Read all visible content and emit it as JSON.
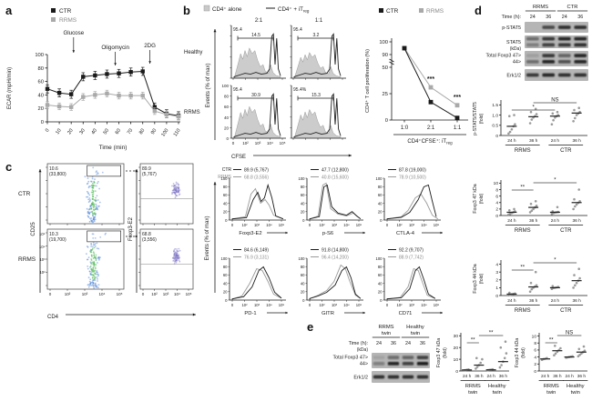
{
  "colors": {
    "ctr": "#1a1a1a",
    "rrms": "#a9a9a9",
    "hist_fill": "#c9c9c9",
    "hist_edge": "#9a9a9a",
    "blot_bg": "#b5b5b5",
    "band": "#181818",
    "dot_blue": "#5b8dd9",
    "dot_green": "#45b54d",
    "dot_purple": "#7d74c4",
    "axis": "#333333",
    "sig": "#444444",
    "pt": "#8f8f8f"
  },
  "panel_a": {
    "label": "a",
    "legend": [
      "CTR",
      "RRMS"
    ],
    "ylabel": "ECAR (mpH/min)",
    "xlabel": "Time (min)",
    "yticks": [
      0,
      20,
      40,
      60,
      80,
      100
    ],
    "chart_data": {
      "type": "line",
      "x": [
        0,
        10,
        20,
        30,
        40,
        50,
        60,
        70,
        80,
        90,
        100,
        110
      ],
      "series": [
        {
          "name": "CTR",
          "values": [
            49,
            43,
            41,
            67,
            69,
            71,
            72,
            74,
            75,
            22,
            12,
            9
          ],
          "err": 6
        },
        {
          "name": "RRMS",
          "values": [
            25,
            23,
            22,
            37,
            40,
            42,
            39,
            39,
            39,
            16,
            11,
            8
          ],
          "err": 5
        }
      ],
      "ylim": [
        0,
        100
      ]
    },
    "annotations": [
      {
        "text": "Glucose",
        "x": 22
      },
      {
        "text": "Oligomycin",
        "x": 57
      },
      {
        "text": "2DG",
        "x": 86
      }
    ]
  },
  "panel_b": {
    "label": "b",
    "legend": {
      "alone": "CD4⁺ alone",
      "treg_main": "CD4⁺ + iT",
      "treg_sub": "reg"
    },
    "col_headers": [
      "2:1",
      "1:1"
    ],
    "row_labels": [
      "Healthy",
      "RRMS"
    ],
    "plots": [
      {
        "corner": "95.4",
        "gate": "14.5"
      },
      {
        "corner": "95.4",
        "gate": "3.2"
      },
      {
        "corner": "95.4",
        "gate": "30.9"
      },
      {
        "corner": "95.4%",
        "gate": "15.3"
      }
    ],
    "yticks": [
      "100",
      "80",
      "60",
      "40",
      "20",
      "0"
    ],
    "xticks": [
      "0",
      "10²",
      "10³",
      "10⁴",
      "10⁵"
    ],
    "ylabel": "Events (% of max)",
    "xlabel": "CFSE",
    "prolif": {
      "legend": [
        "CTR",
        "RRMS"
      ],
      "ylabel": "CD4⁺ T cell proliferation (%)",
      "xlabel_main": "CD4⁺CFSE⁺: iT",
      "xlabel_sub": "reg",
      "chart_data": {
        "type": "line",
        "categories": [
          "1:0",
          "2:1",
          "1:1"
        ],
        "series": [
          {
            "name": "CTR",
            "values": [
              95,
              17,
              2
            ]
          },
          {
            "name": "RRMS",
            "values": [
              95,
              31,
              14
            ]
          }
        ],
        "yticks_low": [
          0,
          25,
          50
        ],
        "yticks_high": [
          90,
          100
        ]
      },
      "sig": [
        {
          "cat": 1,
          "label": "***"
        },
        {
          "cat": 2,
          "label": "***"
        }
      ]
    }
  },
  "panel_c": {
    "label": "c",
    "rows": [
      "CTR",
      "RRMS"
    ],
    "dotplots": [
      {
        "pct": "10.6",
        "count": "(33,800)"
      },
      {
        "pct": "10.3",
        "count": "(19,700)"
      }
    ],
    "foxplots": [
      {
        "pct": "89.9",
        "count": "(5,767)"
      },
      {
        "pct": "68.8",
        "count": "(3,556)"
      }
    ],
    "y_left": "CD25",
    "x_left": "CD4",
    "y_mid": "Foxp3-E2",
    "events_label": "Events (% of max)",
    "yticks": [
      "100",
      "80",
      "60",
      "40",
      "20",
      "0"
    ],
    "xticks": [
      "0",
      "10²",
      "10³",
      "10⁴",
      "10⁵"
    ],
    "log_ticks": [
      "10⁵",
      "10⁴",
      "10³",
      "10²"
    ],
    "legend_names": [
      "CTR",
      "RRMS"
    ],
    "histograms": [
      {
        "name": "Foxp3-E2",
        "ctr": "89.9 (5,767)",
        "rrms": "68.8 (3,556)",
        "show_names": true
      },
      {
        "name": "p-S6",
        "ctr": "47.7 (12,800)",
        "rrms": "40.8 (15,600)"
      },
      {
        "name": "CTLA-4",
        "ctr": "87.8 (19,000)",
        "rrms": "78.9 (10,500)"
      },
      {
        "name": "PD-1",
        "ctr": "84.6 (6,149)",
        "rrms": "76.9 (3,131)"
      },
      {
        "name": "GITR",
        "ctr": "91.8 (14,800)",
        "rrms": "96.4 (14,200)"
      },
      {
        "name": "CD71",
        "ctr": "92.2 (9,707)",
        "rrms": "88.9 (7,742)"
      }
    ]
  },
  "panel_d": {
    "label": "d",
    "blot": {
      "groups": [
        "RRMS",
        "CTR"
      ],
      "time_label": "Time (h):",
      "times": [
        "24",
        "36",
        "24",
        "36"
      ],
      "kda_label": "(kDa)",
      "rows": [
        {
          "label": "p-STAT5",
          "kind": "single",
          "lanes": [
            0.05,
            0.7,
            0.85,
            0.85
          ]
        },
        {
          "label": "STAT5",
          "kind": "double",
          "lanes": [
            [
              0.45,
              0.35
            ],
            [
              0.8,
              0.75
            ],
            [
              0.9,
              0.8
            ],
            [
              0.9,
              0.85
            ]
          ]
        },
        {
          "label": "Total Foxp3 47>",
          "label2": "44>",
          "kind": "double",
          "lanes": [
            [
              0.12,
              0.45
            ],
            [
              0.8,
              0.9
            ],
            [
              0.5,
              0.65
            ],
            [
              0.9,
              0.9
            ]
          ]
        },
        {
          "label": "Erk1/2",
          "kind": "single",
          "lanes": [
            0.8,
            0.9,
            0.85,
            0.85
          ]
        }
      ]
    },
    "scatters": [
      {
        "ylabel1": "p-STAT5/STAT5",
        "ylabel2": "(fold)",
        "ymax": 1.65,
        "yticks": [
          {
            "v": 0,
            "t": "0"
          },
          {
            "v": 0.5,
            "t": "0.5"
          },
          {
            "v": 1.0,
            "t": "1.0"
          },
          {
            "v": 1.5,
            "t": "1.5"
          }
        ],
        "xticks": [
          "24 h",
          "36 h",
          "24 h",
          "36 h"
        ],
        "groups": [
          "RRMS",
          "CTR"
        ],
        "points": [
          [
            0.1,
            0.18,
            0.3,
            0.45,
            0.55,
            0.95,
            1.0
          ],
          [
            0.6,
            0.78,
            0.88,
            0.95,
            1.05,
            1.15,
            1.3
          ],
          [
            0.55,
            0.75,
            0.88,
            0.95,
            1.0,
            1.08,
            1.15
          ],
          [
            0.7,
            0.85,
            1.0,
            1.08,
            1.15,
            1.25,
            1.35
          ]
        ],
        "means": [
          0.45,
          0.92,
          0.95,
          1.1
        ],
        "sig": [
          {
            "from": 0,
            "to": 2,
            "label": "*",
            "row": 0
          },
          {
            "from": 1,
            "to": 3,
            "label": "NS",
            "row": 1
          }
        ]
      },
      {
        "ylabel1": "Foxp3 47 kDa",
        "ylabel2": "(fold)",
        "ymax": 10.4,
        "yticks": [
          {
            "v": 0,
            "t": "0"
          },
          {
            "v": 2,
            "t": "2"
          },
          {
            "v": 4,
            "t": "4"
          },
          {
            "v": 6,
            "t": "6"
          },
          {
            "v": 8,
            "t": "8"
          },
          {
            "v": 10,
            "t": "10"
          }
        ],
        "xticks": [
          "24 h",
          "36 h",
          "24 h",
          "36 h"
        ],
        "groups": [
          "RRMS",
          "CTR"
        ],
        "points": [
          [
            0.3,
            0.5,
            0.8,
            1.0,
            1.3,
            1.6,
            2.0
          ],
          [
            1.0,
            1.5,
            2.0,
            2.5,
            3.0,
            3.6,
            4.4
          ],
          [
            0.5,
            0.7,
            0.9,
            1.0,
            1.1,
            1.3,
            2.6
          ],
          [
            2.0,
            2.8,
            3.4,
            3.9,
            4.4,
            5.0,
            8.0
          ]
        ],
        "means": [
          1.0,
          2.5,
          1.0,
          4.0
        ],
        "sig": [
          {
            "from": 0,
            "to": 1,
            "label": "**",
            "row": 0
          },
          {
            "from": 1,
            "to": 3,
            "label": "*",
            "row": 1
          }
        ]
      },
      {
        "ylabel1": "Foxp3 44 kDa",
        "ylabel2": "(fold)",
        "ymax": 4.3,
        "yticks": [
          {
            "v": 0,
            "t": "0"
          },
          {
            "v": 1,
            "t": "1"
          },
          {
            "v": 2,
            "t": "2"
          },
          {
            "v": 3,
            "t": "3"
          },
          {
            "v": 4,
            "t": "4"
          }
        ],
        "xticks": [
          "24 h",
          "36 h",
          "24 h",
          "36 h"
        ],
        "groups": [
          "RRMS",
          "CTR"
        ],
        "points": [
          [
            0.05,
            0.1,
            0.15,
            0.2,
            0.25,
            0.35
          ],
          [
            0.5,
            0.8,
            1.0,
            1.15,
            1.3,
            1.6,
            3.0
          ],
          [
            0.85,
            0.95,
            1.0,
            1.05,
            1.1,
            1.2
          ],
          [
            1.0,
            1.3,
            1.6,
            1.9,
            2.2,
            2.6,
            3.4
          ]
        ],
        "means": [
          0.18,
          1.1,
          1.0,
          1.9
        ],
        "sig": [
          {
            "from": 0,
            "to": 1,
            "label": "**",
            "row": 0
          },
          {
            "from": 1,
            "to": 3,
            "label": "*",
            "row": 1
          }
        ]
      }
    ]
  },
  "panel_e": {
    "label": "e",
    "blot": {
      "groups": [
        [
          "RRMS",
          "twin"
        ],
        [
          "Healthy",
          "twin"
        ]
      ],
      "time_label": "Time (h):",
      "times": [
        "24",
        "36",
        "24",
        "36"
      ],
      "kda_label": "(kDa)",
      "rows": [
        {
          "label": "Total Foxp3 47>",
          "label2": "44>",
          "kind": "double",
          "lanes": [
            [
              0.1,
              0.35
            ],
            [
              0.45,
              0.9
            ],
            [
              0.5,
              0.75
            ],
            [
              0.75,
              0.95
            ]
          ]
        },
        {
          "label": "Erk1/2",
          "kind": "single",
          "lanes": [
            0.85,
            0.85,
            0.85,
            0.85
          ]
        }
      ]
    },
    "scatters": [
      {
        "ylabel1": "Foxp3 47 kDa",
        "ylabel2": "(fold)",
        "ymax": 31,
        "yticks": [
          {
            "v": 0,
            "t": "0"
          },
          {
            "v": 10,
            "t": "10"
          },
          {
            "v": 20,
            "t": "20"
          },
          {
            "v": 30,
            "t": "30"
          }
        ],
        "xticks": [
          "24 h",
          "36 h",
          "24 h",
          "36 h"
        ],
        "groups": [
          [
            "RRMS",
            "twin"
          ],
          [
            "Healthy",
            "twin"
          ]
        ],
        "points": [
          [
            0.4,
            0.7,
            1.0,
            1.3
          ],
          [
            2,
            3.5,
            5,
            7,
            10,
            11
          ],
          [
            0.6,
            0.9,
            1.1,
            1.4
          ],
          [
            3,
            5,
            8,
            11,
            15,
            20,
            25
          ]
        ],
        "means": [
          0.9,
          5,
          1,
          8
        ],
        "sig": [
          {
            "from": 0,
            "to": 1,
            "label": "**",
            "row": 0
          },
          {
            "from": 1,
            "to": 3,
            "label": "**",
            "row": 1
          }
        ]
      },
      {
        "ylabel1": "Foxp3 44 kDa",
        "ylabel2": "(fold)",
        "ymax": 10.4,
        "yticks": [
          {
            "v": 0,
            "t": "0"
          },
          {
            "v": 2,
            "t": "2"
          },
          {
            "v": 4,
            "t": "4"
          },
          {
            "v": 6,
            "t": "6"
          },
          {
            "v": 8,
            "t": "8"
          },
          {
            "v": 10,
            "t": "10"
          }
        ],
        "xticks": [
          "24 h",
          "36 h",
          "24 h",
          "36 h"
        ],
        "groups": [
          [
            "RRMS",
            "twin"
          ],
          [
            "Healthy",
            "twin"
          ]
        ],
        "points": [
          [
            3.2,
            3.4,
            3.5,
            3.7
          ],
          [
            4.5,
            5.0,
            5.5,
            6.0,
            6.5,
            7.2
          ],
          [
            3.8,
            3.9,
            4.0,
            4.1,
            4.2
          ],
          [
            4.2,
            4.6,
            5.0,
            5.4,
            5.8,
            6.3,
            7.0
          ]
        ],
        "means": [
          3.45,
          5.8,
          4.0,
          5.4
        ],
        "sig": [
          {
            "from": 0,
            "to": 1,
            "label": "**",
            "row": 0
          },
          {
            "from": 1,
            "to": 3,
            "label": "NS",
            "row": 1
          }
        ]
      }
    ]
  }
}
